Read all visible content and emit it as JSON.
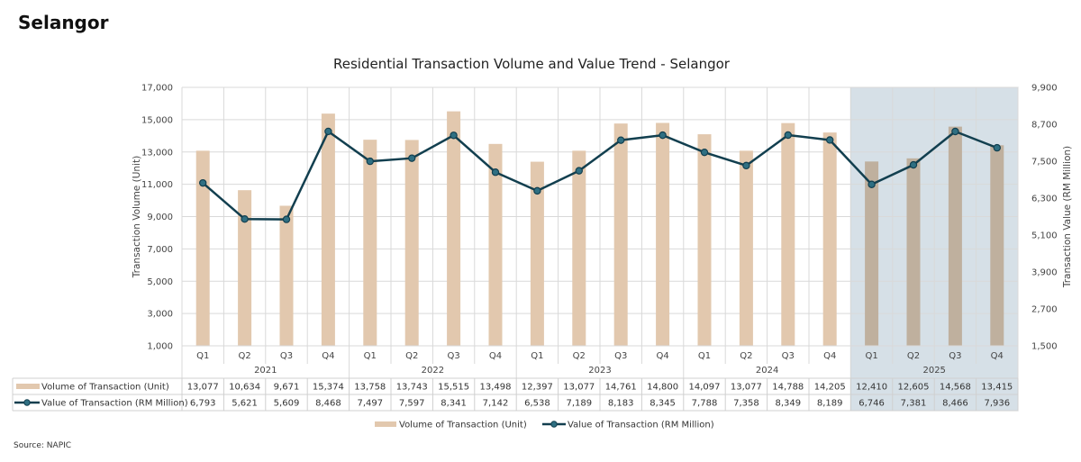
{
  "page": {
    "heading": "Selangor",
    "source": "Source: NAPIC"
  },
  "chart_data": {
    "type": "bar",
    "title": "Residential Transaction Volume and Value Trend - Selangor",
    "xlabel": "",
    "ylabel": "Transaction Volume (Unit)",
    "y2label": "Transaction Value (RM Million)",
    "ylim": [
      1000,
      17000
    ],
    "yticks": [
      "1,000",
      "3,000",
      "5,000",
      "7,000",
      "9,000",
      "11,000",
      "13,000",
      "15,000",
      "17,000"
    ],
    "y2lim": [
      1500,
      9900
    ],
    "y2ticks": [
      "1,500",
      "2,700",
      "3,900",
      "5,100",
      "6,300",
      "7,500",
      "8,700",
      "9,900"
    ],
    "grid": true,
    "legend_position": "bottom",
    "groups": [
      {
        "label": "2021",
        "quarters": [
          "Q1",
          "Q2",
          "Q3",
          "Q4"
        ]
      },
      {
        "label": "2022",
        "quarters": [
          "Q1",
          "Q2",
          "Q3",
          "Q4"
        ]
      },
      {
        "label": "2023",
        "quarters": [
          "Q1",
          "Q2",
          "Q3",
          "Q4"
        ]
      },
      {
        "label": "2024",
        "quarters": [
          "Q1",
          "Q2",
          "Q3",
          "Q4"
        ]
      },
      {
        "label": "2025",
        "quarters": [
          "Q1",
          "Q2",
          "Q3",
          "Q4"
        ],
        "highlighted": true
      }
    ],
    "series": [
      {
        "name": "Volume of Transaction (Unit)",
        "type": "bar",
        "axis": "left",
        "color": "#e2c8ae",
        "highlight_color": "#bfb09e",
        "values": [
          13077,
          10634,
          9671,
          15374,
          13758,
          13743,
          15515,
          13498,
          12397,
          13077,
          14761,
          14800,
          14097,
          13077,
          14788,
          14205,
          12410,
          12605,
          14568,
          13415
        ],
        "labels": [
          "13,077",
          "10,634",
          "9,671",
          "15,374",
          "13,758",
          "13,743",
          "15,515",
          "13,498",
          "12,397",
          "13,077",
          "14,761",
          "14,800",
          "14,097",
          "13,077",
          "14,788",
          "14,205",
          "12,410",
          "12,605",
          "14,568",
          "13,415"
        ]
      },
      {
        "name": "Value of Transaction (RM Million)",
        "type": "line",
        "axis": "right",
        "color": "#123f4f",
        "marker_color": "#2f6f82",
        "values": [
          6793,
          5621,
          5609,
          8468,
          7497,
          7597,
          8341,
          7142,
          6538,
          7189,
          8183,
          8345,
          7788,
          7358,
          8349,
          8189,
          6746,
          7381,
          8466,
          7936
        ],
        "labels": [
          "6,793",
          "5,621",
          "5,609",
          "8,468",
          "7,497",
          "7,597",
          "8,341",
          "7,142",
          "6,538",
          "7,189",
          "8,183",
          "8,345",
          "7,788",
          "7,358",
          "8,349",
          "8,189",
          "6,746",
          "7,381",
          "8,466",
          "7,936"
        ]
      }
    ],
    "highlight_band_color": "#d6e0e7"
  }
}
